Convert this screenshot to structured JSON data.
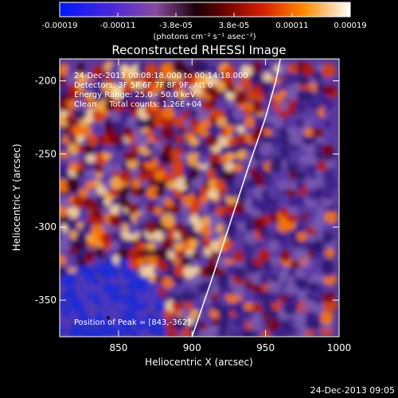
{
  "chart_data": {
    "type": "heatmap",
    "title": "Reconstructed RHESSI Image",
    "xlabel": "Heliocentric X (arcsec)",
    "ylabel": "Heliocentric Y (arcsec)",
    "xlim": [
      810,
      1000
    ],
    "ylim": [
      -375,
      -185
    ],
    "xticks": [
      850,
      900,
      950,
      1000
    ],
    "yticks": [
      -200,
      -250,
      -300,
      -350
    ],
    "colorbar": {
      "ticks": [
        "-0.00019",
        "-0.00011",
        "-3.8e-05",
        "3.8e-05",
        "0.00011",
        "0.00019"
      ],
      "range": [
        -0.00019,
        0.00019
      ],
      "unit_label": "(photons cm⁻² s⁻¹ asec⁻²)"
    },
    "annotations": [
      "24-Dec-2013 00:08:18.000 to 00:14:18.000",
      "Detectors: 3F 5F 6F 7F 8F 9F, Att 0",
      "Energy Range: 25.0 - 50.0 keV",
      "Clean     Total counts: 1.26E+04"
    ],
    "peak_label": "Position of Peak = [843,-362]",
    "peak_position": [
      843,
      -362
    ],
    "timestamp": "24-Dec-2013 09:05",
    "limb_points": [
      [
        900,
        -375
      ],
      [
        912,
        -340
      ],
      [
        925,
        -300
      ],
      [
        938,
        -260
      ],
      [
        950,
        -225
      ],
      [
        957,
        -200
      ],
      [
        960,
        -185
      ]
    ]
  }
}
